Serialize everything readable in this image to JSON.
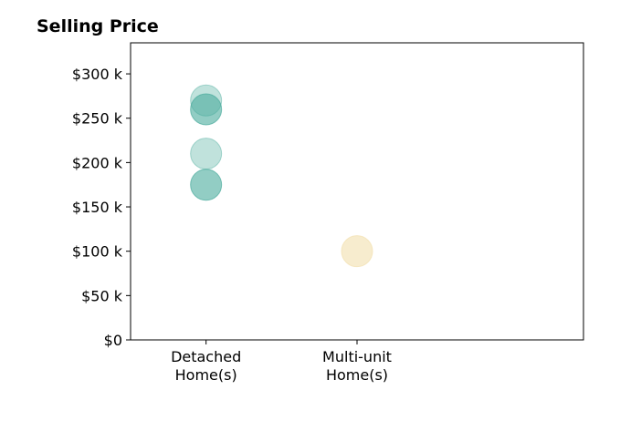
{
  "chart_data": {
    "type": "scatter",
    "title": "Selling Price",
    "xlabel": "",
    "ylabel": "",
    "categories": [
      "Detached\nHome(s)",
      "Multi-unit\nHome(s)"
    ],
    "xlim": [
      -0.5,
      2.5
    ],
    "ylim": [
      0,
      335000
    ],
    "yticks": [
      0,
      50000,
      100000,
      150000,
      200000,
      250000,
      300000
    ],
    "ytick_labels": [
      "$0",
      "$50 k",
      "$100 k",
      "$150 k",
      "$200 k",
      "$250 k",
      "$300 k"
    ],
    "grid": false,
    "legend": "none",
    "series": [
      {
        "category": 0,
        "color": "#4aab9c",
        "points": [
          {
            "x": 0,
            "y": 270000,
            "alpha": 0.35
          },
          {
            "x": 0,
            "y": 260000,
            "alpha": 0.6
          },
          {
            "x": 0,
            "y": 210000,
            "alpha": 0.35
          },
          {
            "x": 0,
            "y": 175000,
            "alpha": 0.6
          }
        ]
      },
      {
        "category": 1,
        "color": "#f2dfae",
        "points": [
          {
            "x": 1,
            "y": 100000,
            "alpha": 0.6
          }
        ]
      }
    ]
  }
}
